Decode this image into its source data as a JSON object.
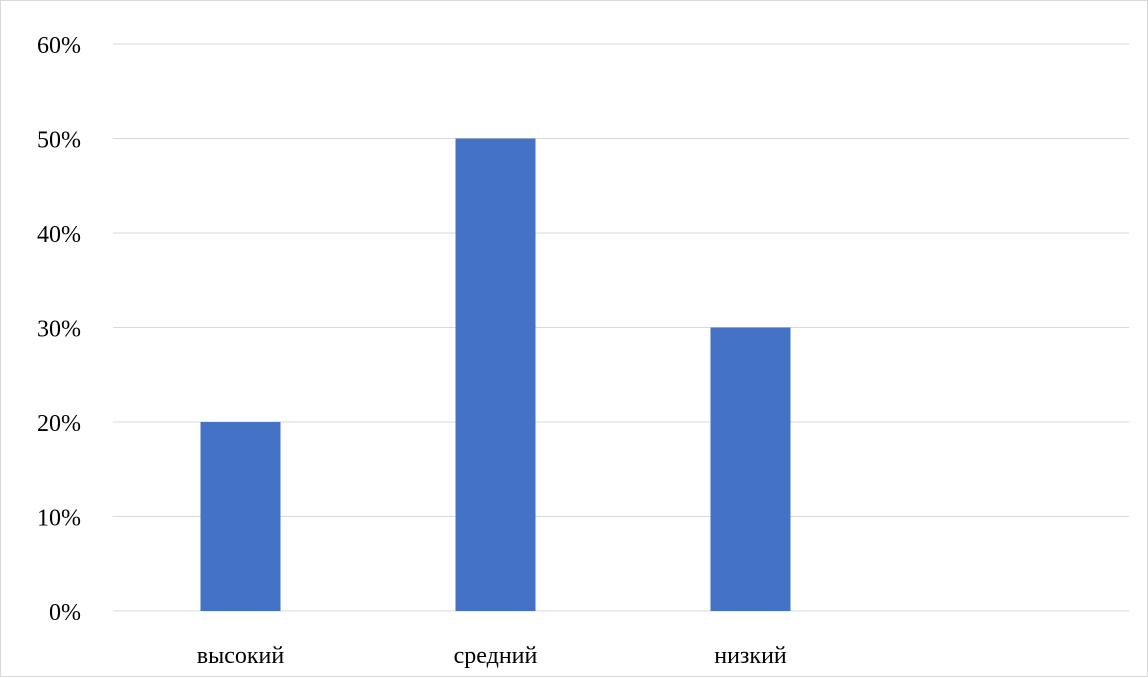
{
  "chart_data": {
    "type": "bar",
    "categories": [
      "высокий",
      "средний",
      "низкий",
      ""
    ],
    "values": [
      20,
      50,
      30,
      null
    ],
    "yticks": [
      "0%",
      "10%",
      "20%",
      "30%",
      "40%",
      "50%",
      "60%"
    ],
    "ylim": [
      0,
      60
    ],
    "grid": true,
    "legend": "none",
    "bar_color": "#4472C4",
    "grid_color": "#d9d9d9"
  }
}
